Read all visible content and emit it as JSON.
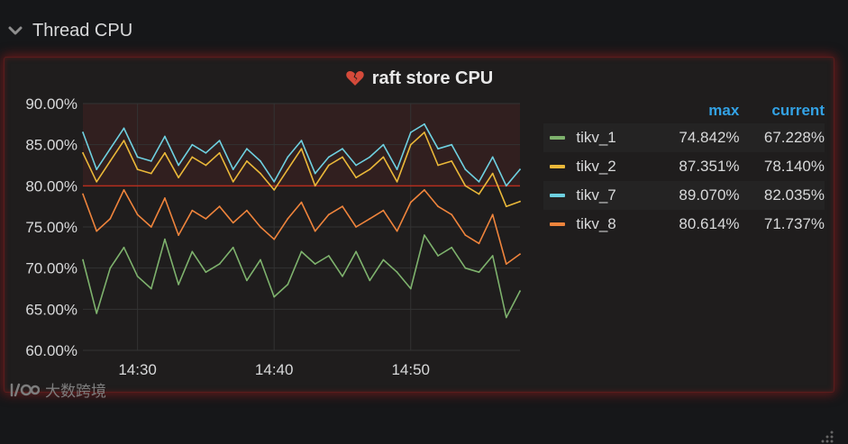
{
  "row": {
    "title": "Thread CPU"
  },
  "panel": {
    "title": "raft store CPU"
  },
  "legend": {
    "headers": {
      "max": "max",
      "current": "current"
    },
    "items": [
      {
        "name": "tikv_1",
        "max": "74.842%",
        "current": "67.228%",
        "color": "#7eb26d"
      },
      {
        "name": "tikv_2",
        "max": "87.351%",
        "current": "78.140%",
        "color": "#eab839"
      },
      {
        "name": "tikv_7",
        "max": "89.070%",
        "current": "82.035%",
        "color": "#6ed0e0"
      },
      {
        "name": "tikv_8",
        "max": "80.614%",
        "current": "71.737%",
        "color": "#ef843c"
      }
    ]
  },
  "watermark": {
    "text": "大数跨境"
  },
  "chart_data": {
    "type": "line",
    "title": "raft store CPU",
    "ylim": [
      60,
      90
    ],
    "y_ticks": [
      "60.00%",
      "65.00%",
      "70.00%",
      "75.00%",
      "80.00%",
      "85.00%",
      "90.00%"
    ],
    "x_range": [
      "14:26",
      "14:58"
    ],
    "x_ticks": [
      "14:30",
      "14:40",
      "14:50"
    ],
    "threshold": 80,
    "grid": true,
    "legend_position": "right",
    "series": [
      {
        "name": "tikv_1",
        "color": "#7eb26d",
        "x": [
          "14:26",
          "14:27",
          "14:28",
          "14:29",
          "14:30",
          "14:31",
          "14:32",
          "14:33",
          "14:34",
          "14:35",
          "14:36",
          "14:37",
          "14:38",
          "14:39",
          "14:40",
          "14:41",
          "14:42",
          "14:43",
          "14:44",
          "14:45",
          "14:46",
          "14:47",
          "14:48",
          "14:49",
          "14:50",
          "14:51",
          "14:52",
          "14:53",
          "14:54",
          "14:55",
          "14:56",
          "14:57",
          "14:58"
        ],
        "values": [
          71.0,
          64.5,
          70.0,
          72.5,
          69.0,
          67.5,
          73.5,
          68.0,
          72.0,
          69.5,
          70.5,
          72.5,
          68.5,
          71.0,
          66.5,
          68.0,
          72.0,
          70.5,
          71.5,
          69.0,
          72.0,
          68.5,
          71.0,
          69.5,
          67.5,
          74.0,
          71.5,
          72.5,
          70.0,
          69.5,
          71.5,
          64.0,
          67.2
        ]
      },
      {
        "name": "tikv_2",
        "color": "#eab839",
        "x": [
          "14:26",
          "14:27",
          "14:28",
          "14:29",
          "14:30",
          "14:31",
          "14:32",
          "14:33",
          "14:34",
          "14:35",
          "14:36",
          "14:37",
          "14:38",
          "14:39",
          "14:40",
          "14:41",
          "14:42",
          "14:43",
          "14:44",
          "14:45",
          "14:46",
          "14:47",
          "14:48",
          "14:49",
          "14:50",
          "14:51",
          "14:52",
          "14:53",
          "14:54",
          "14:55",
          "14:56",
          "14:57",
          "14:58"
        ],
        "values": [
          84.0,
          80.5,
          83.0,
          85.5,
          82.0,
          81.5,
          84.0,
          81.0,
          83.5,
          82.5,
          84.0,
          80.5,
          83.0,
          81.5,
          79.5,
          82.0,
          84.5,
          80.0,
          82.5,
          83.5,
          81.0,
          82.0,
          83.5,
          80.5,
          85.0,
          86.5,
          82.5,
          83.0,
          80.0,
          79.0,
          81.5,
          77.5,
          78.1
        ]
      },
      {
        "name": "tikv_7",
        "color": "#6ed0e0",
        "x": [
          "14:26",
          "14:27",
          "14:28",
          "14:29",
          "14:30",
          "14:31",
          "14:32",
          "14:33",
          "14:34",
          "14:35",
          "14:36",
          "14:37",
          "14:38",
          "14:39",
          "14:40",
          "14:41",
          "14:42",
          "14:43",
          "14:44",
          "14:45",
          "14:46",
          "14:47",
          "14:48",
          "14:49",
          "14:50",
          "14:51",
          "14:52",
          "14:53",
          "14:54",
          "14:55",
          "14:56",
          "14:57",
          "14:58"
        ],
        "values": [
          86.5,
          82.0,
          84.5,
          87.0,
          83.5,
          83.0,
          86.0,
          82.5,
          85.0,
          84.0,
          85.5,
          82.0,
          84.5,
          83.0,
          80.5,
          83.5,
          85.5,
          81.5,
          83.5,
          84.5,
          82.5,
          83.5,
          85.0,
          82.0,
          86.5,
          87.5,
          84.5,
          85.0,
          82.0,
          80.5,
          83.5,
          80.0,
          82.0
        ]
      },
      {
        "name": "tikv_8",
        "color": "#ef843c",
        "x": [
          "14:26",
          "14:27",
          "14:28",
          "14:29",
          "14:30",
          "14:31",
          "14:32",
          "14:33",
          "14:34",
          "14:35",
          "14:36",
          "14:37",
          "14:38",
          "14:39",
          "14:40",
          "14:41",
          "14:42",
          "14:43",
          "14:44",
          "14:45",
          "14:46",
          "14:47",
          "14:48",
          "14:49",
          "14:50",
          "14:51",
          "14:52",
          "14:53",
          "14:54",
          "14:55",
          "14:56",
          "14:57",
          "14:58"
        ],
        "values": [
          79.0,
          74.5,
          76.0,
          79.5,
          76.5,
          75.0,
          78.5,
          74.0,
          77.0,
          76.0,
          77.5,
          75.5,
          77.0,
          75.0,
          73.5,
          76.0,
          78.0,
          74.5,
          76.5,
          77.5,
          75.0,
          76.0,
          77.0,
          74.5,
          78.0,
          79.5,
          77.5,
          76.5,
          74.0,
          73.0,
          76.5,
          70.5,
          71.7
        ]
      }
    ]
  }
}
